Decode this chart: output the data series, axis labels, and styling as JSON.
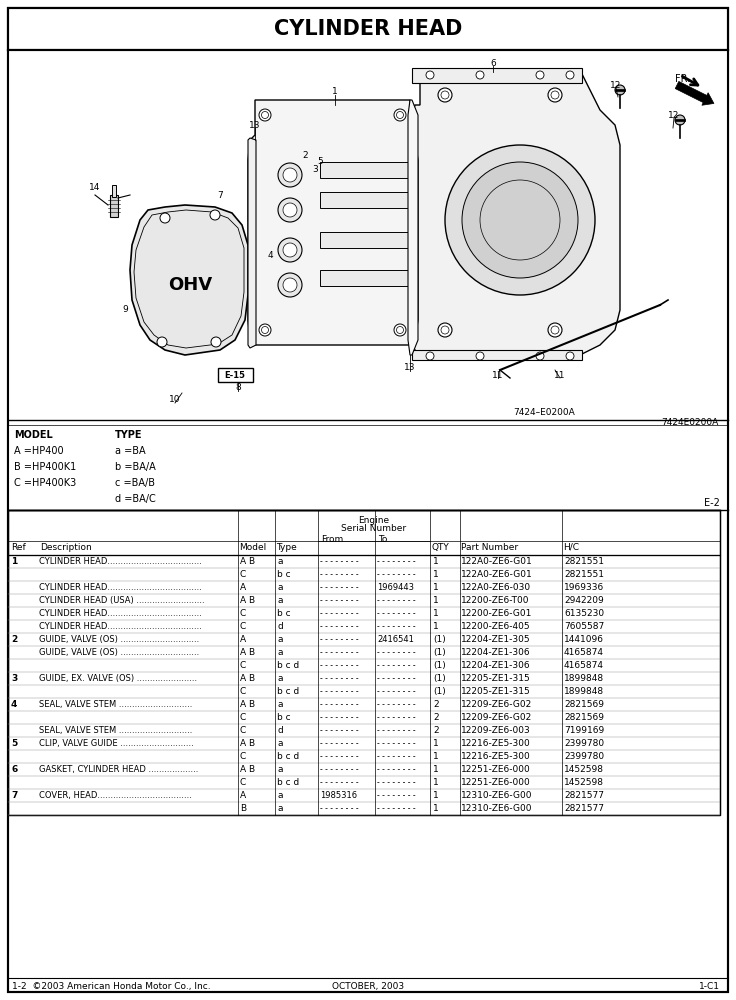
{
  "title": "CYLINDER HEAD",
  "diagram_ref": "7424–E0200A",
  "diagram_ref2": "7424E0200A",
  "page_ref": "E-2",
  "model_info": [
    [
      "MODEL",
      "TYPE"
    ],
    [
      "A =HP400",
      "a =BA"
    ],
    [
      "B =HP400K1",
      "b =BA/A"
    ],
    [
      "C =HP400K3",
      "c =BA/B"
    ],
    [
      "",
      "d =BA/C"
    ]
  ],
  "rows": [
    [
      "1",
      "CYLINDER HEAD....................................",
      "A B",
      "a",
      "- - - - - - - -",
      "- - - - - - - -",
      "1",
      "122A0-ZE6-G01",
      "2821551"
    ],
    [
      "",
      "",
      "C",
      "b c",
      "- - - - - - - -",
      "- - - - - - - -",
      "1",
      "122A0-ZE6-G01",
      "2821551"
    ],
    [
      "",
      "CYLINDER HEAD....................................",
      "A",
      "a",
      "- - - - - - - -",
      "1969443",
      "1",
      "122A0-ZE6-030",
      "1969336"
    ],
    [
      "",
      "CYLINDER HEAD (USA) ..........................",
      "A B",
      "a",
      "- - - - - - - -",
      "- - - - - - - -",
      "1",
      "12200-ZE6-T00",
      "2942209"
    ],
    [
      "",
      "CYLINDER HEAD....................................",
      "C",
      "b c",
      "- - - - - - - -",
      "- - - - - - - -",
      "1",
      "12200-ZE6-G01",
      "6135230"
    ],
    [
      "",
      "CYLINDER HEAD....................................",
      "C",
      "d",
      "- - - - - - - -",
      "- - - - - - - -",
      "1",
      "12200-ZE6-405",
      "7605587"
    ],
    [
      "2",
      "GUIDE, VALVE (OS) ..............................",
      "A",
      "a",
      "- - - - - - - -",
      "2416541",
      "(1)",
      "12204-ZE1-305",
      "1441096"
    ],
    [
      "",
      "GUIDE, VALVE (OS) ..............................",
      "A B",
      "a",
      "- - - - - - - -",
      "- - - - - - - -",
      "(1)",
      "12204-ZE1-306",
      "4165874"
    ],
    [
      "",
      "",
      "C",
      "b c d",
      "- - - - - - - -",
      "- - - - - - - -",
      "(1)",
      "12204-ZE1-306",
      "4165874"
    ],
    [
      "3",
      "GUIDE, EX. VALVE (OS) .......................",
      "A B",
      "a",
      "- - - - - - - -",
      "- - - - - - - -",
      "(1)",
      "12205-ZE1-315",
      "1899848"
    ],
    [
      "",
      "",
      "C",
      "b c d",
      "- - - - - - - -",
      "- - - - - - - -",
      "(1)",
      "12205-ZE1-315",
      "1899848"
    ],
    [
      "4",
      "SEAL, VALVE STEM ............................",
      "A B",
      "a",
      "- - - - - - - -",
      "- - - - - - - -",
      "2",
      "12209-ZE6-G02",
      "2821569"
    ],
    [
      "",
      "",
      "C",
      "b c",
      "- - - - - - - -",
      "- - - - - - - -",
      "2",
      "12209-ZE6-G02",
      "2821569"
    ],
    [
      "",
      "SEAL, VALVE STEM ............................",
      "C",
      "d",
      "- - - - - - - -",
      "- - - - - - - -",
      "2",
      "12209-ZE6-003",
      "7199169"
    ],
    [
      "5",
      "CLIP, VALVE GUIDE ............................",
      "A B",
      "a",
      "- - - - - - - -",
      "- - - - - - - -",
      "1",
      "12216-ZE5-300",
      "2399780"
    ],
    [
      "",
      "",
      "C",
      "b c d",
      "- - - - - - - -",
      "- - - - - - - -",
      "1",
      "12216-ZE5-300",
      "2399780"
    ],
    [
      "6",
      "GASKET, CYLINDER HEAD ...................",
      "A B",
      "a",
      "- - - - - - - -",
      "- - - - - - - -",
      "1",
      "12251-ZE6-000",
      "1452598"
    ],
    [
      "",
      "",
      "C",
      "b c d",
      "- - - - - - - -",
      "- - - - - - - -",
      "1",
      "12251-ZE6-000",
      "1452598"
    ],
    [
      "7",
      "COVER, HEAD....................................",
      "A",
      "a",
      "1985316",
      "- - - - - - - -",
      "1",
      "12310-ZE6-G00",
      "2821577"
    ],
    [
      "",
      "",
      "B",
      "a",
      "- - - - - - - -",
      "- - - - - - - -",
      "1",
      "12310-ZE6-G00",
      "2821577"
    ]
  ],
  "footer_left": "1-2  ©2003 American Honda Motor Co., Inc.",
  "footer_center": "OCTOBER, 2003",
  "footer_right": "1-C1"
}
